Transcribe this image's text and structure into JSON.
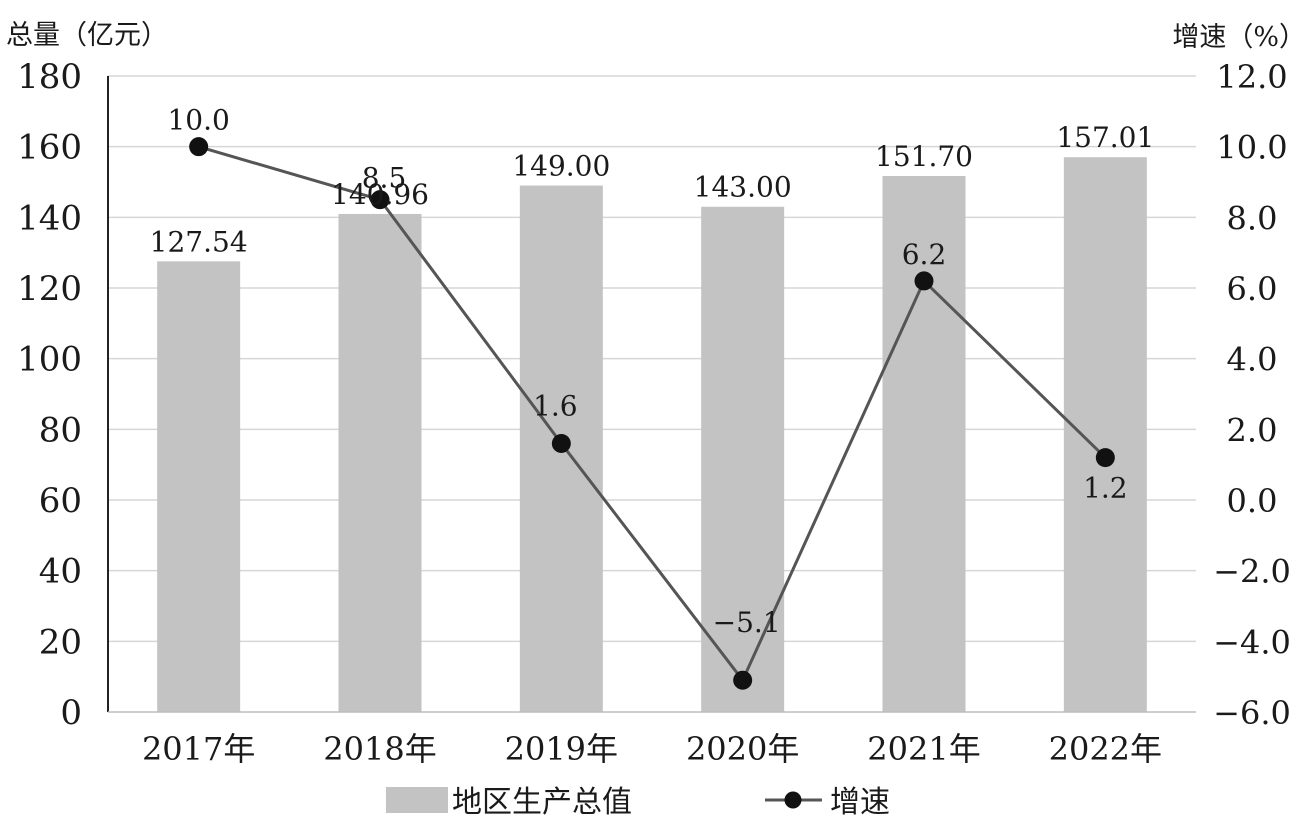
{
  "chart_data": {
    "type": "bar",
    "categories": [
      "2017年",
      "2018年",
      "2019年",
      "2020年",
      "2021年",
      "2022年"
    ],
    "series": [
      {
        "name": "地区生产总值",
        "type": "bar",
        "axis": "left",
        "values": [
          127.54,
          140.96,
          149.0,
          143.0,
          151.7,
          157.01
        ],
        "labels": [
          "127.54",
          "140.96",
          "149.00",
          "143.00",
          "151.70",
          "157.01"
        ],
        "color": "#c3c3c3"
      },
      {
        "name": "增速",
        "type": "line",
        "axis": "right",
        "values": [
          10.0,
          8.5,
          1.6,
          -5.1,
          6.2,
          1.2
        ],
        "labels": [
          "10.0",
          "8.5",
          "1.6",
          "−5.1",
          "6.2",
          "1.2"
        ],
        "color": "#555555",
        "marker_color": "#111111"
      }
    ],
    "ylabel_left": "总量（亿元）",
    "ylabel_right": "增速（%）",
    "ylim_left": [
      0,
      180
    ],
    "ylim_right": [
      -6,
      12
    ],
    "yticks_left": [
      "0",
      "20",
      "40",
      "60",
      "80",
      "100",
      "120",
      "140",
      "160",
      "180"
    ],
    "yticks_right": [
      "−6.0",
      "−4.0",
      "−2.0",
      "0.0",
      "2.0",
      "4.0",
      "6.0",
      "8.0",
      "10.0",
      "12.0"
    ],
    "grid": true,
    "legend_position": "bottom"
  }
}
